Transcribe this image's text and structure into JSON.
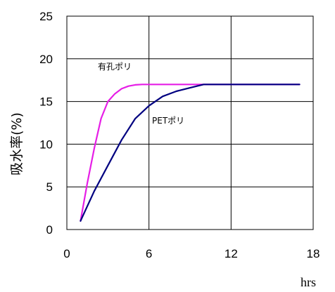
{
  "chart_data": {
    "type": "line",
    "ylabel": "吸水率(%)",
    "xunit": "hrs",
    "xlim": [
      0,
      18
    ],
    "ylim": [
      0,
      25
    ],
    "xticks": [
      0,
      6,
      12,
      18
    ],
    "yticks": [
      0,
      5,
      10,
      15,
      20,
      25
    ],
    "grid": true,
    "colors": {
      "axis": "#000000",
      "grid": "#000000"
    },
    "series": [
      {
        "name": "有孔ポリ",
        "color": "#e61ee6",
        "x": [
          1,
          1.5,
          2,
          2.5,
          3,
          3.5,
          4,
          4.5,
          5,
          5.5,
          6,
          8,
          10,
          12,
          14,
          17
        ],
        "y": [
          1,
          5.5,
          9.5,
          13,
          15,
          15.9,
          16.5,
          16.8,
          16.95,
          17,
          17,
          17,
          17,
          17,
          17,
          17
        ]
      },
      {
        "name": "PETポリ",
        "color": "#000080",
        "x": [
          1,
          2,
          3,
          4,
          5,
          6,
          7,
          8,
          9,
          10,
          12,
          14,
          17
        ],
        "y": [
          1,
          4.5,
          7.5,
          10.5,
          13,
          14.5,
          15.6,
          16.2,
          16.6,
          17,
          17,
          17,
          17
        ]
      }
    ]
  }
}
